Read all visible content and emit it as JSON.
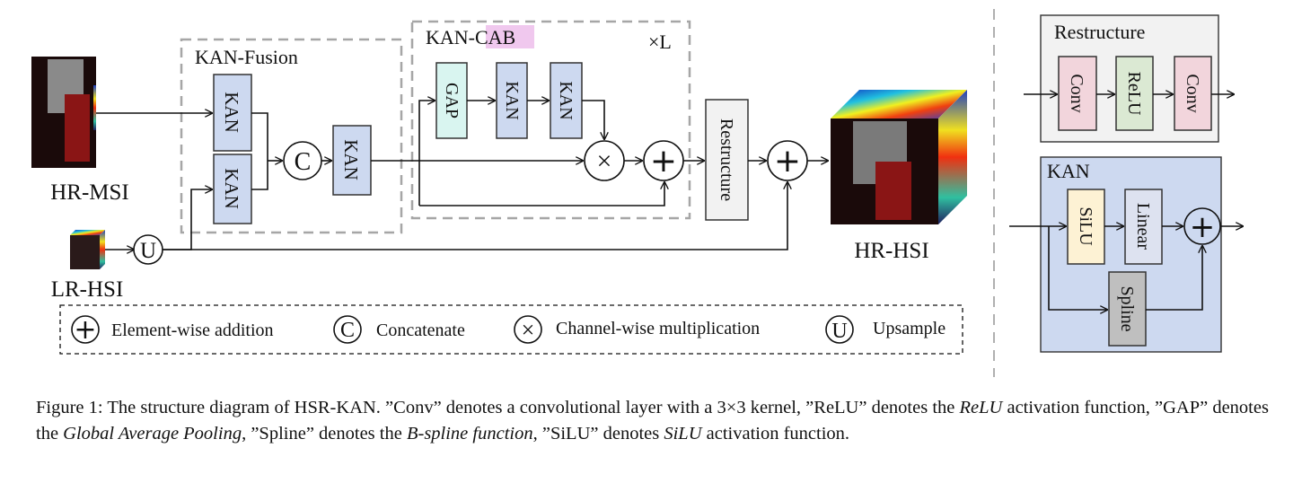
{
  "inputs": {
    "hr_msi": "HR-MSI",
    "lr_hsi": "LR-HSI",
    "hr_hsi": "HR-HSI"
  },
  "fusion": {
    "title": "KAN-Fusion",
    "kan": "KAN",
    "concat": "C"
  },
  "cab": {
    "title_prefix": "KAN-",
    "title_highlight": "CAB",
    "repeat": "×L",
    "gap": "GAP",
    "kan": "KAN",
    "multiply": "×",
    "add": "+"
  },
  "restructure_block": "Restructure",
  "upsample": "U",
  "legend": [
    {
      "symbol": "+",
      "label": "Element-wise addition"
    },
    {
      "symbol": "C",
      "label": "Concatenate"
    },
    {
      "symbol": "×",
      "label": "Channel-wise multiplication"
    },
    {
      "symbol": "U",
      "label": "Upsample"
    }
  ],
  "restructure_panel": {
    "title": "Restructure",
    "blocks": [
      "Conv",
      "ReLU",
      "Conv"
    ]
  },
  "kan_panel": {
    "title": "KAN",
    "silu": "SiLU",
    "linear": "Linear",
    "spline": "Spline",
    "add": "+"
  },
  "colors": {
    "kan": "#cdd9f0",
    "gap": "#d9f5f0",
    "conv": "#f2d5dc",
    "relu": "#dbe9d3",
    "silu": "#fdf2d4",
    "linear": "#dde2f0",
    "spline": "#bfbfbf",
    "restructure_bg": "#f2f2f2",
    "cab_highlight": "#f0c8ee"
  },
  "caption": {
    "p1": "Figure 1: The structure diagram of HSR-KAN. ”Conv” denotes a convolutional layer with a 3×3 kernel, ”ReLU” denotes the ",
    "i1": "ReLU",
    "p2": " activation function, ”GAP” denotes the ",
    "i2": "Global Average Pooling",
    "p3": ", ”Spline” denotes the ",
    "i3": "B-spline function",
    "p4": ", ”SiLU” denotes ",
    "i4": "SiLU",
    "p5": " activation function."
  }
}
